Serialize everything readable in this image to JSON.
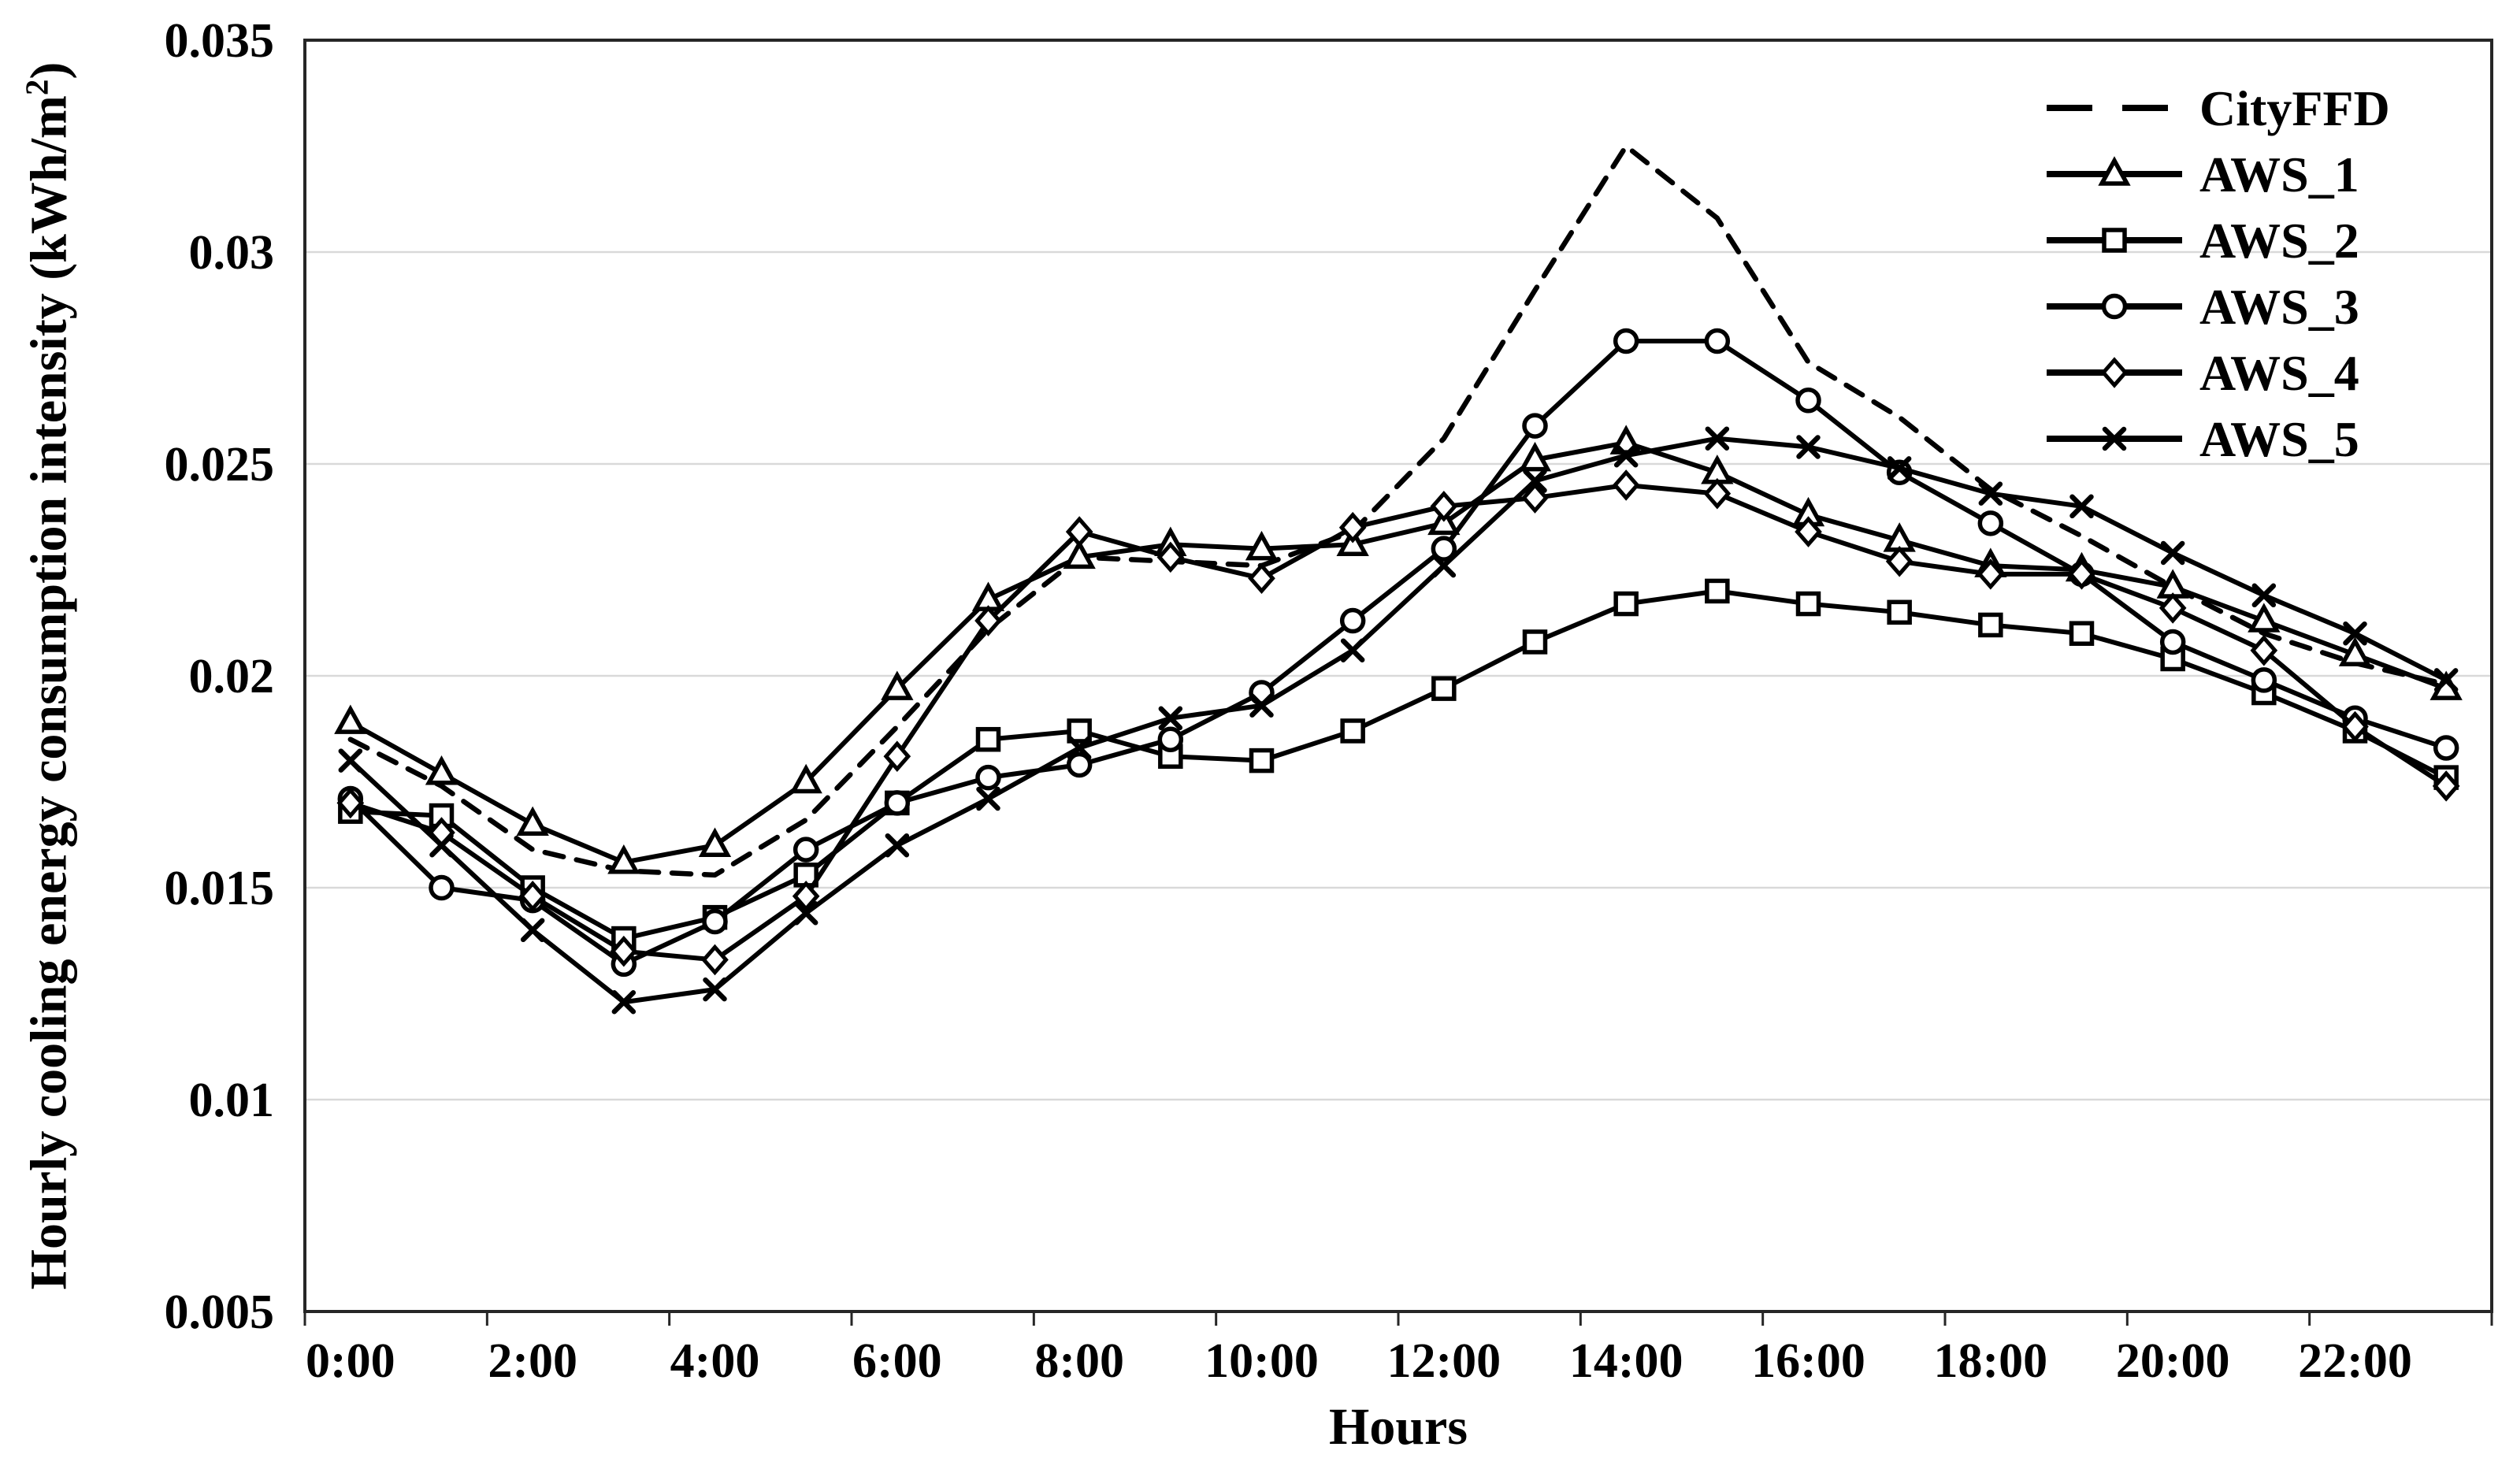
{
  "chart_data": {
    "type": "line",
    "title": "",
    "xlabel": "Hours",
    "ylabel": "Hourly cooling energy consumption intensity (kWh/m²)",
    "ylim": [
      0.005,
      0.035
    ],
    "ytick_values": [
      0.005,
      0.01,
      0.015,
      0.02,
      0.025,
      0.03,
      0.035
    ],
    "ytick_labels": [
      "0.005",
      "0.01",
      "0.015",
      "0.02",
      "0.025",
      "0.03",
      "0.035"
    ],
    "x_categories": [
      "0:00",
      "1:00",
      "2:00",
      "3:00",
      "4:00",
      "5:00",
      "6:00",
      "7:00",
      "8:00",
      "9:00",
      "10:00",
      "11:00",
      "12:00",
      "13:00",
      "14:00",
      "15:00",
      "16:00",
      "17:00",
      "18:00",
      "19:00",
      "20:00",
      "21:00",
      "22:00",
      "23:00"
    ],
    "x_tick_label_every": 2,
    "grid": "horizontal",
    "legend_position": "top-right-inside",
    "colors": {
      "series": "#000000",
      "grid": "#d9d9d9",
      "frame": "#262626",
      "marker_fill": "#ffffff"
    },
    "series": [
      {
        "name": "CityFFD",
        "marker": "none",
        "line": "dashed",
        "values": [
          0.0185,
          0.0174,
          0.0159,
          0.0154,
          0.0153,
          0.0166,
          0.0188,
          0.0211,
          0.0228,
          0.0227,
          0.0226,
          0.0234,
          0.0256,
          0.0291,
          0.0325,
          0.0308,
          0.0274,
          0.0261,
          0.0244,
          0.0233,
          0.0221,
          0.021,
          0.0203,
          0.0198
        ]
      },
      {
        "name": "AWS_1",
        "marker": "triangle",
        "line": "solid",
        "values": [
          0.0189,
          0.0177,
          0.0165,
          0.0156,
          0.016,
          0.0175,
          0.0197,
          0.0218,
          0.0228,
          0.0231,
          0.023,
          0.0231,
          0.0236,
          0.0251,
          0.0255,
          0.0248,
          0.0238,
          0.0232,
          0.0226,
          0.0225,
          0.0221,
          0.0213,
          0.0205,
          0.0197
        ]
      },
      {
        "name": "AWS_2",
        "marker": "square",
        "line": "solid",
        "values": [
          0.0168,
          0.0167,
          0.015,
          0.0138,
          0.0143,
          0.0153,
          0.017,
          0.0185,
          0.0187,
          0.0181,
          0.018,
          0.0187,
          0.0197,
          0.0208,
          0.0217,
          0.022,
          0.0217,
          0.0215,
          0.0212,
          0.021,
          0.0204,
          0.0196,
          0.0187,
          0.0176
        ]
      },
      {
        "name": "AWS_3",
        "marker": "circle",
        "line": "solid",
        "values": [
          0.0171,
          0.015,
          0.0147,
          0.0132,
          0.0142,
          0.0159,
          0.017,
          0.0176,
          0.0179,
          0.0185,
          0.0196,
          0.0213,
          0.023,
          0.0259,
          0.0279,
          0.0279,
          0.0265,
          0.0248,
          0.0236,
          0.0224,
          0.0208,
          0.0199,
          0.019,
          0.0183
        ]
      },
      {
        "name": "AWS_4",
        "marker": "diamond",
        "line": "solid",
        "values": [
          0.017,
          0.0163,
          0.0148,
          0.0135,
          0.0133,
          0.0148,
          0.0181,
          0.0213,
          0.0234,
          0.0228,
          0.0223,
          0.0235,
          0.024,
          0.0242,
          0.0245,
          0.0243,
          0.0234,
          0.0227,
          0.0224,
          0.0224,
          0.0216,
          0.0206,
          0.0188,
          0.0174
        ]
      },
      {
        "name": "AWS_5",
        "marker": "x",
        "line": "solid",
        "values": [
          0.018,
          0.016,
          0.014,
          0.0123,
          0.0126,
          0.0144,
          0.016,
          0.0171,
          0.0183,
          0.019,
          0.0193,
          0.0206,
          0.0226,
          0.0246,
          0.0252,
          0.0256,
          0.0254,
          0.0249,
          0.0243,
          0.024,
          0.0229,
          0.0219,
          0.021,
          0.0199
        ]
      }
    ]
  }
}
